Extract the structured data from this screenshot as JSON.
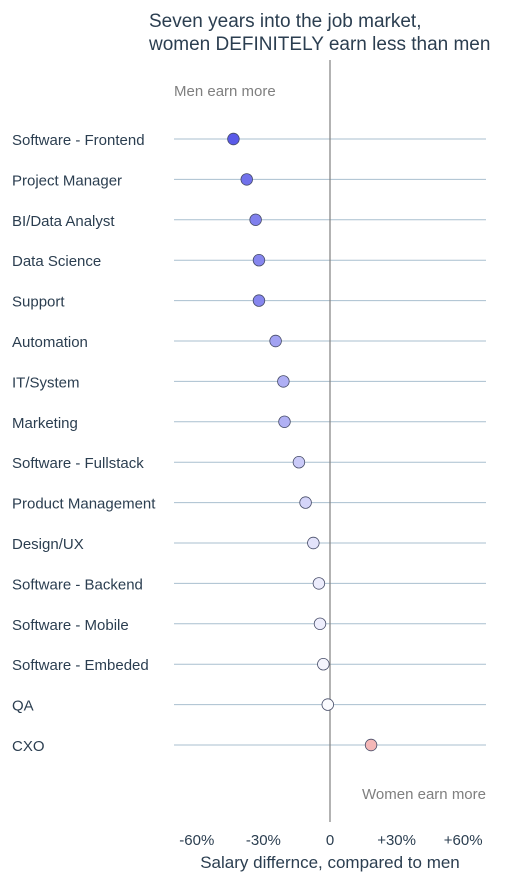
{
  "chart_data": {
    "type": "scatter",
    "title": "Seven years into the job market,\nwomen DEFINITELY earn less than men",
    "xlabel": "Salary differnce, compared to men",
    "ylabel": "",
    "xlim": [
      -70,
      75
    ],
    "x_ticks": [
      -60,
      -30,
      0,
      30,
      60
    ],
    "x_tick_labels": [
      "-60%",
      "-30%",
      "0",
      "+30%",
      "+60%"
    ],
    "annotations": {
      "left": "Men earn more",
      "right": "Women earn more"
    },
    "grid": "horizontal lines per category",
    "categories": [
      "Software - Frontend",
      "Project Manager",
      "BI/Data Analyst",
      "Data Science",
      "Support",
      "Automation",
      "IT/System",
      "Marketing",
      "Software - Fullstack",
      "Product Management",
      "Design/UX",
      "Software - Backend",
      "Software - Mobile",
      "Software - Embeded",
      "QA",
      "CXO"
    ],
    "values": [
      -43.5,
      -37.5,
      -33.5,
      -32.0,
      -32.0,
      -24.5,
      -21.0,
      -20.5,
      -14.0,
      -11.0,
      -7.5,
      -5.0,
      -4.5,
      -3.0,
      -1.0,
      18.5
    ],
    "colors": {
      "negative_max": "#5a5ae8",
      "neutral": "#ffffff",
      "positive": "#f4b7b7"
    }
  }
}
